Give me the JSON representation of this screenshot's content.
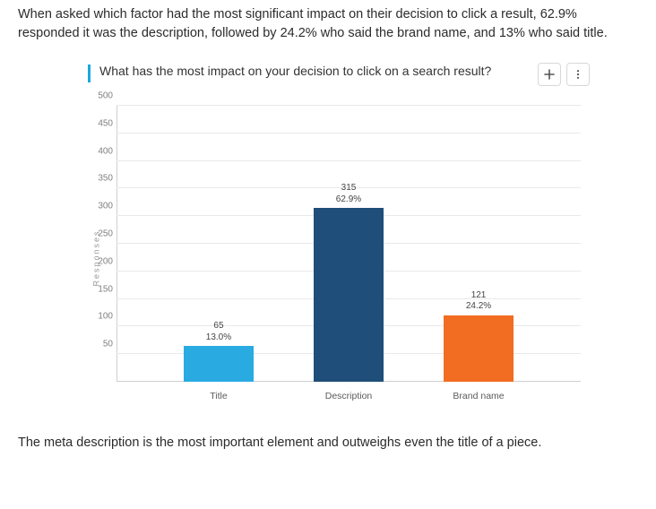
{
  "intro_text": "When asked which factor had the most significant impact on their decision to click a result, 62.9% responded it was the description, followed by 24.2% who said the brand name, and 13% who said title.",
  "outro_text": "The meta description is the most important element and outweighs even the title of a piece.",
  "chart": {
    "type": "bar",
    "title": "What has the most impact on your decision to click on a search result?",
    "y_axis_label": "Responses",
    "ylim": [
      0,
      500
    ],
    "ytick_step": 50,
    "y_ticks": [
      50,
      100,
      150,
      200,
      250,
      300,
      350,
      400,
      450,
      500
    ],
    "categories": [
      "Title",
      "Description",
      "Brand name"
    ],
    "values": [
      65,
      315,
      121
    ],
    "percentages": [
      "13.0%",
      "62.9%",
      "24.2%"
    ],
    "bar_colors": [
      "#29abe2",
      "#1e4e79",
      "#f26c21"
    ],
    "bar_width_pct": 15,
    "bar_positions_pct": [
      22,
      50,
      78
    ],
    "background_color": "#ffffff",
    "grid_color": "#e9e9e9",
    "axis_color": "#cfcfcf",
    "label_fontsize": 10,
    "title_fontsize": 14,
    "accent_color": "#1ca7e0"
  },
  "actions": {
    "add_tooltip": "Add",
    "more_tooltip": "More"
  }
}
